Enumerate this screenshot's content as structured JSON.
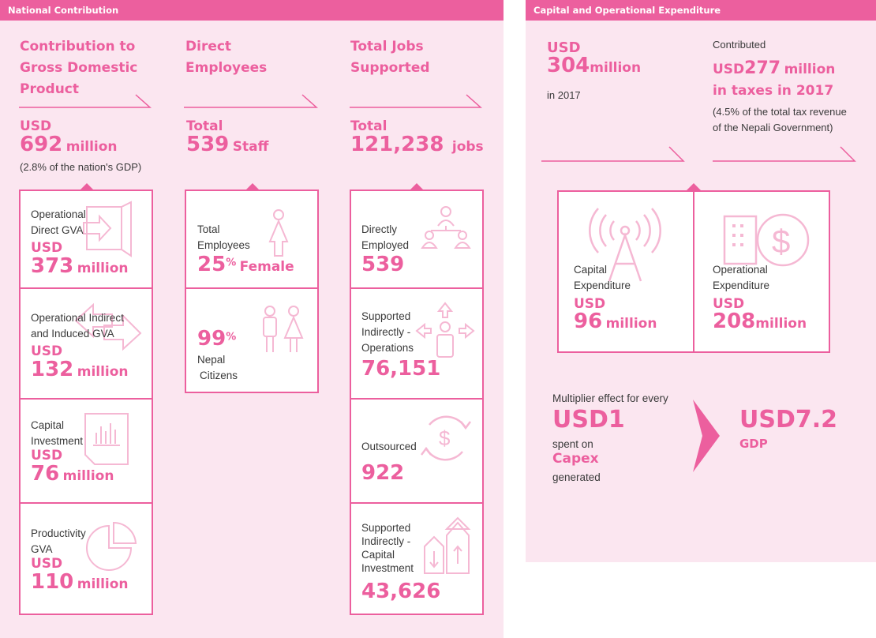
{
  "national": {
    "bar_title": "National Contribution",
    "gdp": {
      "heading": [
        "Contribution to",
        "Gross Domestic",
        "Product"
      ],
      "currency": "USD",
      "value": "692",
      "unit": "million",
      "note": "(2.8% of the nation's GDP)",
      "items": [
        {
          "label": [
            "Operational",
            "Direct GVA"
          ],
          "currency": "USD",
          "value": "373",
          "unit": "million",
          "icon": "exit-arrow-icon"
        },
        {
          "label": [
            "Operational Indirect",
            "and Induced GVA"
          ],
          "currency": "USD",
          "value": "132",
          "unit": "million",
          "icon": "double-arrow-icon"
        },
        {
          "label": [
            "Capital",
            "Investment"
          ],
          "currency": "USD",
          "value": "76",
          "unit": "million",
          "icon": "bar-document-icon"
        },
        {
          "label": [
            "Productivity",
            "GVA"
          ],
          "currency": "USD",
          "value": "110",
          "unit": "million",
          "icon": "pie-chart-icon"
        }
      ]
    },
    "employees": {
      "heading": [
        "Direct",
        "Employees"
      ],
      "prefix": "Total",
      "value": "539",
      "unit": "Staff",
      "items": [
        {
          "label": [
            "Total",
            "Employees"
          ],
          "value": "25",
          "sup": "%",
          "unit": "Female",
          "icon": "female-person-icon"
        },
        {
          "label": [
            "Nepal",
            "Citizens"
          ],
          "value": "99",
          "sup": "%",
          "unit": "",
          "icon": "people-icon"
        }
      ]
    },
    "jobs": {
      "heading": [
        "Total Jobs",
        "Supported"
      ],
      "prefix": "Total",
      "value": "121,238",
      "unit": "jobs",
      "items": [
        {
          "label": [
            "Directly",
            "Employed"
          ],
          "value": "539",
          "icon": "org-chart-icon"
        },
        {
          "label": [
            "Supported",
            "Indirectly -",
            "Operations"
          ],
          "value": "76,151",
          "icon": "person-arrows-icon"
        },
        {
          "label": [
            "Outsourced"
          ],
          "value": "922",
          "icon": "dollar-cycle-icon"
        },
        {
          "label": [
            "Supported",
            "Indirectly -",
            "Capital",
            "Investment"
          ],
          "value": "43,626",
          "icon": "up-down-arrows-icon"
        }
      ]
    }
  },
  "capex_opex": {
    "bar_title": "Capital and Operational Expenditure",
    "total": {
      "currency": "USD",
      "value": "304",
      "unit": "million",
      "note": "in 2017"
    },
    "taxes": {
      "prefix": "Contributed",
      "currency": "USD",
      "value": "277",
      "unit": "million",
      "line2": "in taxes in 2017",
      "note": [
        "(4.5% of the total tax revenue",
        "of the Nepali Government)"
      ]
    },
    "items": [
      {
        "label": [
          "Capital",
          "Expenditure"
        ],
        "currency": "USD",
        "value": "96",
        "unit": "million",
        "icon": "radio-tower-icon"
      },
      {
        "label": [
          "Operational",
          "Expenditure"
        ],
        "currency": "USD",
        "value": "208",
        "unit": "million",
        "icon": "building-dollar-icon"
      }
    ],
    "multiplier": {
      "intro": "Multiplier effect for every",
      "input": "USD1",
      "spent": "spent on",
      "capex": "Capex",
      "generated": "generated",
      "output": "USD7.2",
      "output_unit": "GDP"
    }
  },
  "colors": {
    "accent": "#ec5f9e",
    "panel": "#fbe6f0",
    "icon_light": "#f5b8d3"
  }
}
